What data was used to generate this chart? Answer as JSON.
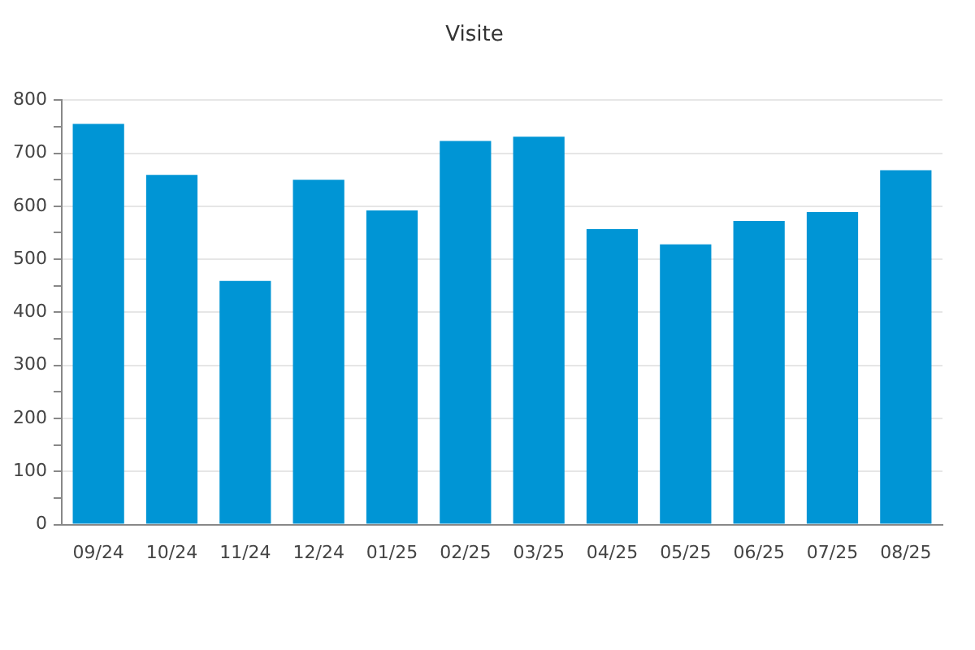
{
  "chart_data": {
    "type": "bar",
    "title": "Visite",
    "categories": [
      "09/24",
      "10/24",
      "11/24",
      "12/24",
      "01/25",
      "02/25",
      "03/25",
      "04/25",
      "05/25",
      "06/25",
      "07/25",
      "08/25"
    ],
    "values": [
      755,
      659,
      459,
      650,
      592,
      723,
      731,
      557,
      528,
      572,
      589,
      668
    ],
    "color": "#0095d5",
    "ylim": [
      0,
      800
    ],
    "yticks": [
      0,
      {
        "value": 50,
        "label": null
      },
      100,
      {
        "value": 150,
        "label": null
      },
      200,
      {
        "value": 250,
        "label": null
      },
      300,
      {
        "value": 350,
        "label": null
      },
      400,
      {
        "value": 450,
        "label": null
      },
      500,
      {
        "value": 550,
        "label": null
      },
      600,
      {
        "value": 650,
        "label": null
      },
      700,
      {
        "value": 750,
        "label": null
      },
      800
    ],
    "grid": "y"
  }
}
